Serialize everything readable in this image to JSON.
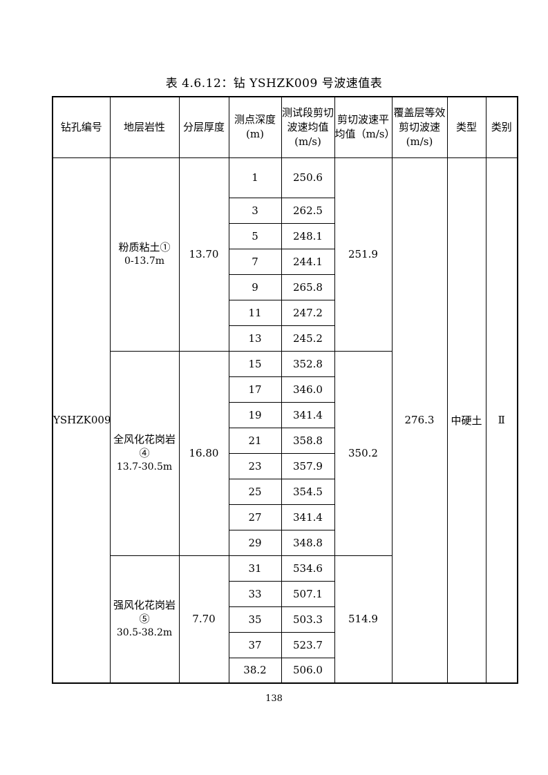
{
  "page": {
    "title": "表 4.6.12：钻 YSHZK009 号波速值表",
    "page_number": "138"
  },
  "table": {
    "headers": [
      "钻孔编号",
      "地层岩性",
      "分层厚度",
      "测点深度\n(m)",
      "测试段剪切\n波速均值\n(m/s)",
      "剪切波速平\n均值（m/s）",
      "覆盖层等效\n剪切波速\n(m/s)",
      "类型",
      "类别"
    ],
    "borehole_id": "YSHZK009",
    "overburden_equivalent_velocity": "276.3",
    "soil_type": "中硬土",
    "site_category": "Ⅱ",
    "sections": [
      {
        "lithology": "粉质粘土①",
        "depth_range": "0-13.7m",
        "thickness": "13.70",
        "average": "251.9",
        "rows": [
          {
            "depth": "1",
            "velocity": "250.6"
          },
          {
            "depth": "3",
            "velocity": "262.5"
          },
          {
            "depth": "5",
            "velocity": "248.1"
          },
          {
            "depth": "7",
            "velocity": "244.1"
          },
          {
            "depth": "9",
            "velocity": "265.8"
          },
          {
            "depth": "11",
            "velocity": "247.2"
          },
          {
            "depth": "13",
            "velocity": "245.2"
          }
        ]
      },
      {
        "lithology": "全风化花岗岩④",
        "depth_range": "13.7-30.5m",
        "thickness": "16.80",
        "average": "350.2",
        "rows": [
          {
            "depth": "15",
            "velocity": "352.8"
          },
          {
            "depth": "17",
            "velocity": "346.0"
          },
          {
            "depth": "19",
            "velocity": "341.4"
          },
          {
            "depth": "21",
            "velocity": "358.8"
          },
          {
            "depth": "23",
            "velocity": "357.9"
          },
          {
            "depth": "25",
            "velocity": "354.5"
          },
          {
            "depth": "27",
            "velocity": "341.4"
          },
          {
            "depth": "29",
            "velocity": "348.8"
          }
        ]
      },
      {
        "lithology": "强风化花岗岩⑤",
        "depth_range": "30.5-38.2m",
        "thickness": "7.70",
        "average": "514.9",
        "rows": [
          {
            "depth": "31",
            "velocity": "534.6"
          },
          {
            "depth": "33",
            "velocity": "507.1"
          },
          {
            "depth": "35",
            "velocity": "503.3"
          },
          {
            "depth": "37",
            "velocity": "523.7"
          },
          {
            "depth": "38.2",
            "velocity": "506.0"
          }
        ]
      }
    ]
  }
}
